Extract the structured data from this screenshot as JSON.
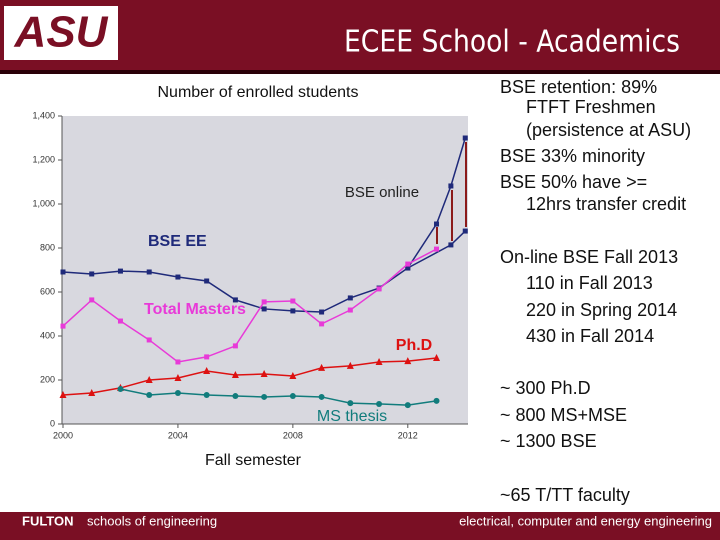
{
  "header": {
    "logo": "ASU",
    "title": "ECEE School - Academics"
  },
  "chart_data": {
    "type": "line",
    "title": "Number of enrolled students",
    "xlabel": "Fall semester",
    "annotation": "BSE online",
    "xlim": [
      2000,
      2014.2
    ],
    "ylim": [
      0,
      1400
    ],
    "xticks": [
      2000,
      2004,
      2008,
      2012
    ],
    "yticks": [
      0,
      200,
      400,
      600,
      800,
      {
        "value": 1000,
        "label": "1,000"
      },
      {
        "value": 1200,
        "label": "1,200"
      },
      {
        "value": 1400,
        "label": "1,400"
      }
    ],
    "series": [
      {
        "name": "BSE EE",
        "color": "#1f2a7a",
        "marker": "square",
        "x": [
          2000,
          2001,
          2002,
          2003,
          2004,
          2005,
          2006,
          2007,
          2008,
          2009,
          2010,
          2011,
          2012,
          2013,
          2013.5,
          2014
        ],
        "values": [
          691,
          682,
          695,
          691,
          668,
          650,
          564,
          523,
          514,
          509,
          573,
          618,
          709,
          909,
          1082,
          1300
        ]
      },
      {
        "color": "#1f2a7a",
        "marker": "square",
        "x": [
          2012,
          2013.5,
          2014
        ],
        "values": [
          709,
          814,
          877
        ]
      },
      {
        "name": "Total Masters",
        "color": "#e83ad8",
        "marker": "square",
        "x": [
          2000,
          2001,
          2002,
          2003,
          2004,
          2005,
          2006,
          2007,
          2008,
          2009,
          2010,
          2011,
          2012,
          2013
        ],
        "values": [
          445,
          564,
          468,
          382,
          282,
          305,
          355,
          555,
          559,
          455,
          518,
          614,
          727,
          795
        ]
      },
      {
        "name": "Ph.D",
        "color": "#dd1111",
        "marker": "triangle",
        "x": [
          2000,
          2001,
          2002,
          2003,
          2004,
          2005,
          2006,
          2007,
          2008,
          2009,
          2010,
          2011,
          2012,
          2013
        ],
        "values": [
          132,
          141,
          164,
          200,
          209,
          241,
          223,
          227,
          218,
          255,
          264,
          282,
          286,
          300
        ]
      },
      {
        "name": "MS thesis",
        "color": "#117c7c",
        "marker": "circle",
        "x": [
          2002,
          2003,
          2004,
          2005,
          2006,
          2007,
          2008,
          2009,
          2010,
          2011,
          2012,
          2013
        ],
        "values": [
          159,
          132,
          141,
          132,
          127,
          123,
          127,
          123,
          95,
          91,
          86,
          105
        ]
      }
    ]
  },
  "notes": [
    "BSE retention: 89%",
    "FTFT Freshmen",
    "(persistence at ASU)",
    "BSE 33% minority",
    "BSE 50% have >=",
    "12hrs transfer credit",
    "On-line BSE Fall 2013",
    "110 in Fall 2013",
    "220 in Spring 2014",
    "430 in Fall 2014",
    "~ 300 Ph.D",
    "~ 800 MS+MSE",
    "~ 1300 BSE",
    "~65 T/TT faculty"
  ],
  "footer": {
    "brand": "FULTON",
    "brand_rest": "schools of engineering",
    "right": "electrical, computer and energy engineering"
  }
}
